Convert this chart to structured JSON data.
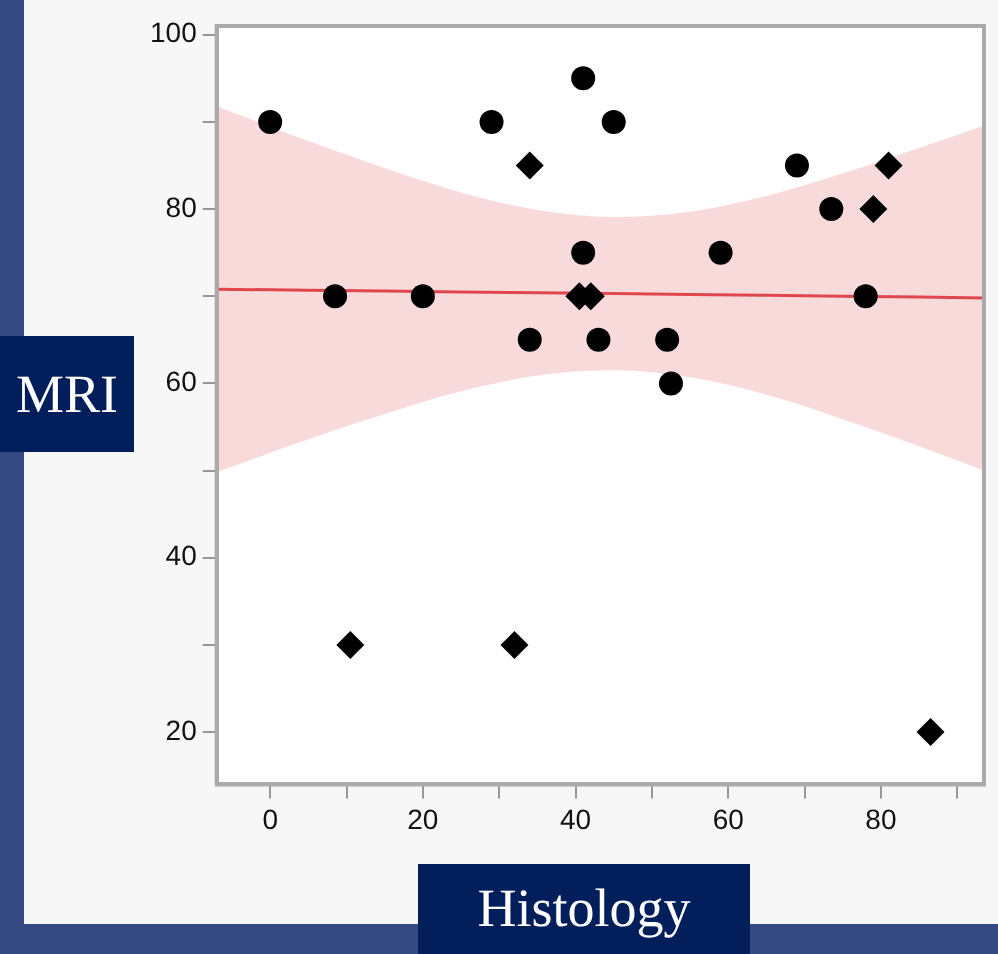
{
  "chart_data": {
    "type": "scatter",
    "xlabel": "Histology",
    "ylabel": "MRI",
    "xlim": [
      -7,
      93.5
    ],
    "ylim": [
      14,
      101
    ],
    "xticks": [
      0,
      {
        "value": 10,
        "label": null
      },
      20,
      {
        "value": 30,
        "label": null
      },
      40,
      {
        "value": 50,
        "label": null
      },
      60,
      {
        "value": 70,
        "label": null
      },
      80,
      {
        "value": 90,
        "label": null
      }
    ],
    "yticks": [
      20,
      {
        "value": 30,
        "label": null
      },
      40,
      {
        "value": 50,
        "label": null
      },
      60,
      {
        "value": 70,
        "label": null
      },
      80,
      {
        "value": 90,
        "label": null
      },
      100
    ],
    "grid": false,
    "legend": false,
    "series": [
      {
        "type": "line",
        "color": "#e0474c",
        "marker": "none",
        "x": [
          -7,
          5,
          15,
          25,
          35,
          45,
          55,
          65,
          75,
          85,
          93.5
        ],
        "values": [
          70.8,
          70.7,
          70.6,
          70.5,
          70.4,
          70.3,
          70.2,
          70.1,
          70,
          69.9,
          69.8
        ],
        "lower": [
          49.8,
          53.6,
          56.5,
          59.1,
          60.9,
          61.5,
          60.7,
          58.7,
          55.9,
          52.8,
          50
        ],
        "upper": [
          91.8,
          87.8,
          84.7,
          81.9,
          79.9,
          79.1,
          79.7,
          81.5,
          84.1,
          87,
          89.6
        ]
      },
      {
        "color": "#000000",
        "marker": "circle",
        "x": [
          0,
          8.5,
          20,
          29,
          41,
          41,
          45,
          34,
          43,
          52,
          52.5,
          59,
          69,
          73.5,
          78
        ],
        "values": [
          90,
          70,
          70,
          90,
          95,
          75,
          90,
          65,
          65,
          65,
          60,
          75,
          85,
          80,
          70
        ]
      },
      {
        "color": "#000000",
        "marker": "diamond",
        "x": [
          34,
          40.5,
          42,
          79,
          81,
          10.5,
          32,
          86.5
        ],
        "values": [
          85,
          70,
          70,
          80,
          85,
          30,
          30,
          20
        ]
      }
    ]
  }
}
